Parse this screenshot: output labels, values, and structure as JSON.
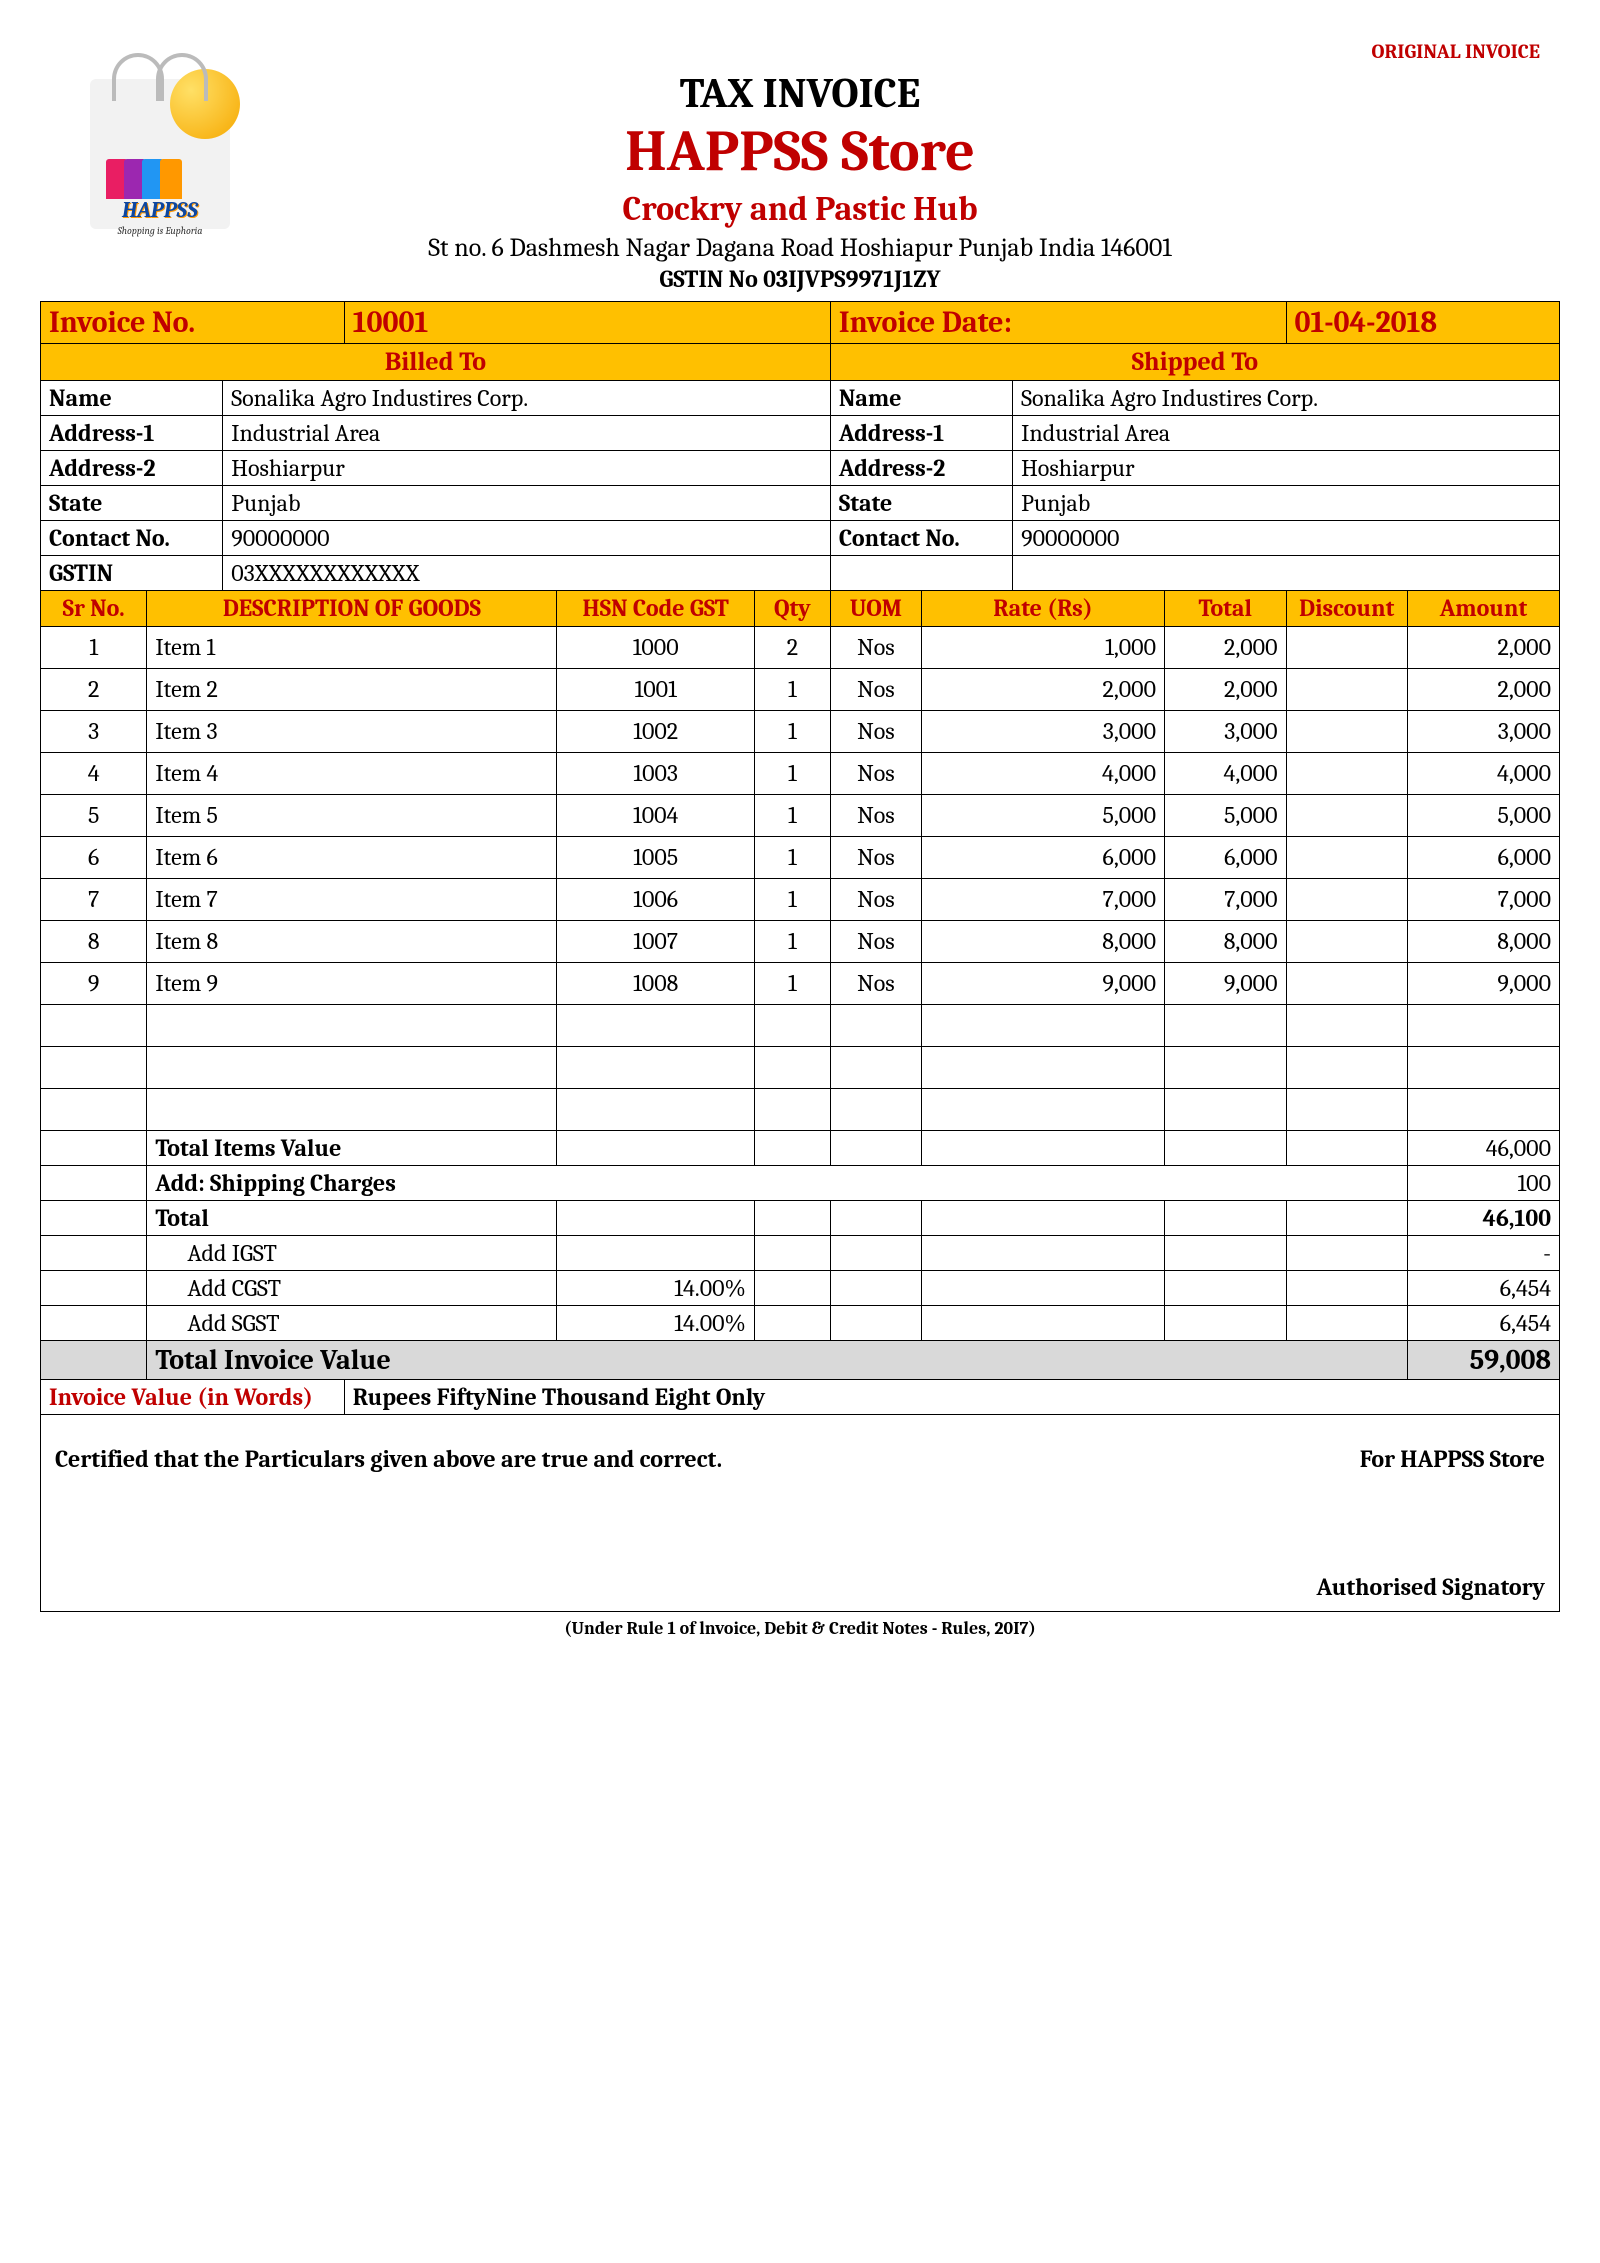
{
  "stamp": "ORIGINAL INVOICE",
  "header": {
    "title": "TAX INVOICE",
    "store": "HAPPSS Store",
    "tagline": "Crockry and Pastic Hub",
    "address": "St no. 6 Dashmesh Nagar Dagana Road Hoshiapur Punjab India 146001",
    "gstin_label": "GSTIN No 03IJVPS9971J1ZY",
    "logo_text": "HAPPSS",
    "logo_sub": "Shopping is Euphoria"
  },
  "meta": {
    "invoice_no_label": "Invoice No.",
    "invoice_no": "10001",
    "invoice_date_label": "Invoice Date:",
    "invoice_date": "01-04-2018"
  },
  "billed": {
    "heading": "Billed To",
    "name_label": "Name",
    "name": "Sonalika Agro Industires Corp.",
    "addr1_label": "Address-1",
    "addr1": "Industrial Area",
    "addr2_label": "Address-2",
    "addr2": "Hoshiarpur",
    "state_label": "State",
    "state": "Punjab",
    "contact_label": "Contact No.",
    "contact": "90000000",
    "gstin_label": "GSTIN",
    "gstin": "03XXXXXXXXXXXX"
  },
  "shipped": {
    "heading": "Shipped To",
    "name_label": "Name",
    "name": "Sonalika Agro Industires Corp.",
    "addr1_label": "Address-1",
    "addr1": "Industrial Area",
    "addr2_label": "Address-2",
    "addr2": "Hoshiarpur",
    "state_label": "State",
    "state": "Punjab",
    "contact_label": "Contact No.",
    "contact": "90000000"
  },
  "cols": {
    "sr": "Sr No.",
    "desc": "DESCRIPTION OF GOODS",
    "hsn": "HSN Code GST",
    "qty": "Qty",
    "uom": "UOM",
    "rate": "Rate (Rs)",
    "total": "Total",
    "discount": "Discount",
    "amount": "Amount"
  },
  "items": [
    {
      "sr": "1",
      "desc": "Item 1",
      "hsn": "1000",
      "qty": "2",
      "uom": "Nos",
      "rate": "1,000",
      "total": "2,000",
      "discount": "",
      "amount": "2,000"
    },
    {
      "sr": "2",
      "desc": "Item 2",
      "hsn": "1001",
      "qty": "1",
      "uom": "Nos",
      "rate": "2,000",
      "total": "2,000",
      "discount": "",
      "amount": "2,000"
    },
    {
      "sr": "3",
      "desc": "Item 3",
      "hsn": "1002",
      "qty": "1",
      "uom": "Nos",
      "rate": "3,000",
      "total": "3,000",
      "discount": "",
      "amount": "3,000"
    },
    {
      "sr": "4",
      "desc": "Item 4",
      "hsn": "1003",
      "qty": "1",
      "uom": "Nos",
      "rate": "4,000",
      "total": "4,000",
      "discount": "",
      "amount": "4,000"
    },
    {
      "sr": "5",
      "desc": "Item 5",
      "hsn": "1004",
      "qty": "1",
      "uom": "Nos",
      "rate": "5,000",
      "total": "5,000",
      "discount": "",
      "amount": "5,000"
    },
    {
      "sr": "6",
      "desc": "Item 6",
      "hsn": "1005",
      "qty": "1",
      "uom": "Nos",
      "rate": "6,000",
      "total": "6,000",
      "discount": "",
      "amount": "6,000"
    },
    {
      "sr": "7",
      "desc": "Item 7",
      "hsn": "1006",
      "qty": "1",
      "uom": "Nos",
      "rate": "7,000",
      "total": "7,000",
      "discount": "",
      "amount": "7,000"
    },
    {
      "sr": "8",
      "desc": "Item 8",
      "hsn": "1007",
      "qty": "1",
      "uom": "Nos",
      "rate": "8,000",
      "total": "8,000",
      "discount": "",
      "amount": "8,000"
    },
    {
      "sr": "9",
      "desc": "Item 9",
      "hsn": "1008",
      "qty": "1",
      "uom": "Nos",
      "rate": "9,000",
      "total": "9,000",
      "discount": "",
      "amount": "9,000"
    }
  ],
  "summary": {
    "items_value_label": "Total Items Value",
    "items_value": "46,000",
    "shipping_label": "Add: Shipping Charges",
    "shipping": "100",
    "total_label": "Total",
    "total": "46,100",
    "igst_label": "Add  IGST",
    "igst_rate": "",
    "igst": "-",
    "cgst_label": "Add  CGST",
    "cgst_rate": "14.00%",
    "cgst": "6,454",
    "sgst_label": "Add  SGST",
    "sgst_rate": "14.00%",
    "sgst": "6,454",
    "invoice_value_label": "Total Invoice Value",
    "invoice_value": "59,008"
  },
  "in_words": {
    "label": "Invoice Value (in Words)",
    "value": "Rupees FiftyNine Thousand Eight Only"
  },
  "footer": {
    "cert": "Certified that the Particulars given above are true and correct.",
    "for": "For HAPPSS Store",
    "sig": "Authorised Signatory",
    "rule": "(Under Rule 1 of lnvoice, Debit & Credit Notes - Rules, 20I7)"
  },
  "colors": {
    "brand_red": "#c00000",
    "header_yellow": "#ffc000",
    "grey_row": "#d9d9d9"
  }
}
